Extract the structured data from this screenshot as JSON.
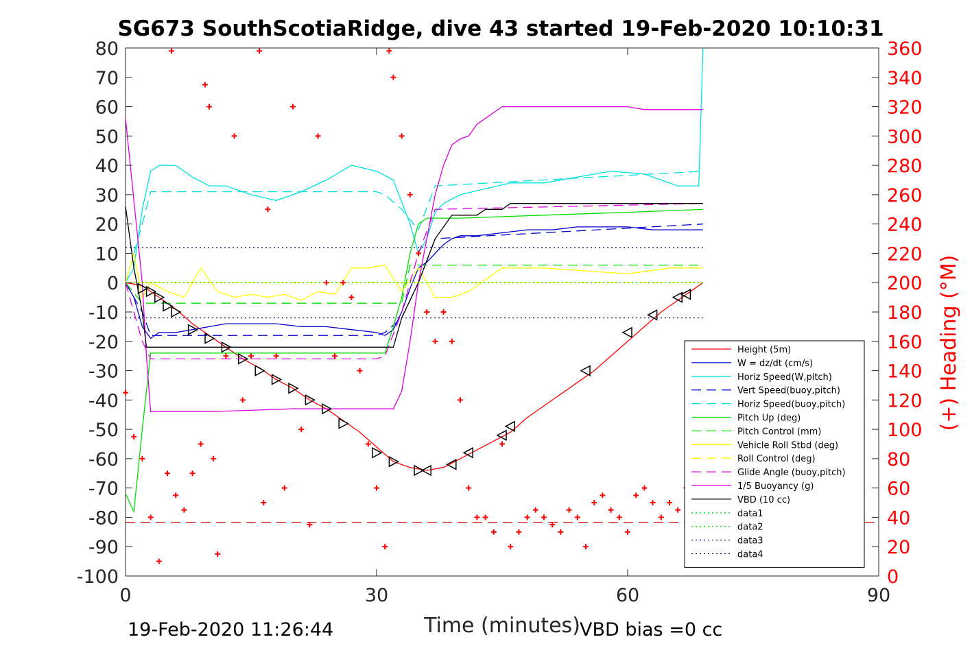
{
  "chart_data": {
    "type": "line",
    "title": "SG673 SouthScotiaRidge, dive 43 started 19-Feb-2020 10:10:31",
    "xlabel": "Time (minutes)",
    "ylabel": "",
    "y2label": "(+) Heading (°M)",
    "xlim": [
      0,
      90
    ],
    "ylim": [
      -100,
      80
    ],
    "y2lim": [
      0,
      360
    ],
    "xticks": [
      "0",
      "30",
      "60",
      "90"
    ],
    "yticks": [
      "80",
      "70",
      "60",
      "50",
      "40",
      "30",
      "20",
      "10",
      "0",
      "-10",
      "-20",
      "-30",
      "-40",
      "-50",
      "-60",
      "-70",
      "-80",
      "-90",
      "-100"
    ],
    "y2ticks": [
      "360",
      "340",
      "320",
      "300",
      "280",
      "260",
      "240",
      "220",
      "200",
      "180",
      "160",
      "140",
      "120",
      "100",
      "80",
      "60",
      "40",
      "20",
      "0"
    ],
    "grid": false,
    "legend_position": "bottom-right",
    "footer_left": "19-Feb-2020 11:26:44",
    "footer_right": "VBD bias =0 cc",
    "colors": {
      "height": "#ff0000",
      "w": "#0000cc",
      "horiz": "#00e0e0",
      "pitch": "#00dd00",
      "roll": "#ffff00",
      "glide": "#dd00dd",
      "buoy": "#dd00dd",
      "vbd": "#000000",
      "heading": "#ff0000",
      "marker": "#000000"
    },
    "series": [
      {
        "name": "Height (5m)",
        "style": "solid",
        "color": "#ff0000",
        "x": [
          0,
          2,
          4,
          6,
          8,
          10,
          12,
          14,
          16,
          18,
          20,
          22,
          24,
          26,
          28,
          30,
          32,
          34,
          36,
          38,
          40,
          42,
          44,
          46,
          48,
          50,
          52,
          54,
          56,
          58,
          60,
          62,
          64,
          66,
          68,
          69
        ],
        "y": [
          0,
          -1,
          -5,
          -9,
          -14,
          -18,
          -22,
          -26,
          -29,
          -33,
          -36,
          -40,
          -43,
          -47,
          -51,
          -56,
          -61,
          -63,
          -64,
          -63,
          -60,
          -57,
          -54,
          -51,
          -46,
          -42,
          -38,
          -34,
          -30,
          -25,
          -20,
          -15,
          -10,
          -6,
          -2,
          0
        ]
      },
      {
        "name": "W = dz/dt (cm/s)",
        "style": "solid",
        "color": "#0000cc",
        "x": [
          0,
          1,
          2,
          3,
          4,
          6,
          8,
          10,
          12,
          15,
          18,
          21,
          24,
          27,
          30,
          31,
          32,
          33,
          34,
          35,
          36,
          37,
          38,
          39,
          40,
          42,
          45,
          48,
          51,
          54,
          57,
          60,
          63,
          66,
          69
        ],
        "y": [
          0,
          -5,
          -15,
          -19,
          -17,
          -17,
          -16,
          -15,
          -14,
          -14,
          -14,
          -15,
          -15,
          -16,
          -17,
          -18,
          -16,
          -10,
          -2,
          5,
          7,
          10,
          13,
          15,
          16,
          16,
          17,
          18,
          18,
          19,
          19,
          19,
          18,
          18,
          18
        ]
      },
      {
        "name": "Horiz Speed(W,pitch)",
        "style": "solid",
        "color": "#00e0e0",
        "x": [
          0,
          1,
          2,
          3,
          4,
          6,
          8,
          10,
          12,
          15,
          18,
          21,
          24,
          27,
          30,
          32,
          34,
          35,
          36,
          37,
          38,
          40,
          43,
          46,
          50,
          54,
          58,
          62,
          66,
          68.5,
          69
        ],
        "y": [
          0,
          5,
          25,
          38,
          40,
          40,
          36,
          33,
          33,
          30,
          28,
          31,
          35,
          40,
          38,
          35,
          20,
          10,
          15,
          24,
          27,
          30,
          32,
          34,
          34,
          36,
          38,
          37,
          33,
          33,
          80
        ]
      },
      {
        "name": "Vert Speed(buoy,pitch)",
        "style": "dashed",
        "color": "#0000cc",
        "x": [
          0,
          2,
          3,
          30,
          31,
          33,
          35,
          37,
          69
        ],
        "y": [
          0,
          -10,
          -18,
          -18,
          -17,
          -12,
          0,
          15,
          20
        ]
      },
      {
        "name": "Horiz Speed(buoy,pitch)",
        "style": "dashed",
        "color": "#00e0e0",
        "x": [
          0,
          2,
          3,
          30,
          31,
          33,
          35,
          37,
          69
        ],
        "y": [
          0,
          20,
          31,
          31,
          30,
          25,
          18,
          33,
          38
        ]
      },
      {
        "name": "Pitch Up (deg)",
        "style": "solid",
        "color": "#00dd00",
        "x": [
          0,
          1,
          2,
          3,
          30,
          31,
          32,
          33,
          34,
          35,
          36,
          37,
          38,
          40,
          50,
          60,
          69
        ],
        "y": [
          -72,
          -78,
          -50,
          -24,
          -24,
          -24,
          -15,
          -5,
          10,
          20,
          22,
          22,
          22,
          22,
          23,
          24,
          25
        ]
      },
      {
        "name": "Pitch Control (mm)",
        "style": "dashed",
        "color": "#00dd00",
        "x": [
          0,
          2,
          3,
          32,
          33,
          34,
          69
        ],
        "y": [
          0,
          -7,
          -7,
          -7,
          -7,
          6,
          6
        ]
      },
      {
        "name": "Vehicle Roll Stbd (deg)",
        "style": "solid",
        "color": "#ffff00",
        "x": [
          0,
          1,
          2,
          3,
          5,
          7,
          9,
          11,
          13,
          15,
          17,
          19,
          21,
          23,
          25,
          27,
          29,
          31,
          33,
          35,
          37,
          39,
          41,
          45,
          50,
          55,
          60,
          65,
          69
        ],
        "y": [
          0,
          10,
          -5,
          0,
          -3,
          -5,
          5,
          -3,
          -5,
          -4,
          -5,
          -4,
          -6,
          -3,
          -4,
          5,
          5,
          6,
          -3,
          5,
          -5,
          -5,
          -3,
          5,
          5,
          4,
          3,
          5,
          5
        ]
      },
      {
        "name": "Roll Control (deg)",
        "style": "dashed",
        "color": "#ffff00",
        "x": [
          0,
          2,
          3,
          69
        ],
        "y": [
          0,
          0,
          0,
          0
        ]
      },
      {
        "name": "Glide Angle (buoy,pitch)",
        "style": "dashed",
        "color": "#dd00dd",
        "x": [
          0,
          2,
          3,
          30,
          31,
          33,
          35,
          37,
          69
        ],
        "y": [
          0,
          -20,
          -26,
          -26,
          -25,
          -10,
          10,
          25,
          27
        ]
      },
      {
        "name": "1/5 Buoyancy (g)",
        "style": "solid",
        "color": "#dd00dd",
        "x": [
          0,
          2,
          2.5,
          3,
          10,
          20,
          32,
          33,
          34,
          35,
          36,
          37,
          38,
          39,
          40,
          41,
          42,
          43,
          44,
          45,
          46,
          60,
          62,
          69
        ],
        "y": [
          56,
          0,
          -25,
          -44,
          -44,
          -43,
          -43,
          -37,
          -20,
          0,
          15,
          30,
          40,
          47,
          49,
          50,
          54,
          56,
          58,
          60,
          60,
          60,
          59,
          59
        ]
      },
      {
        "name": "VBD (10 cc)",
        "style": "solid",
        "color": "#000000",
        "x": [
          0,
          1,
          2,
          2.5,
          32,
          33,
          35,
          37,
          39,
          42,
          43,
          45,
          46,
          69
        ],
        "y": [
          26,
          5,
          -10,
          -22,
          -22,
          -12,
          0,
          15,
          23,
          23,
          25,
          25,
          27,
          27
        ]
      },
      {
        "name": "data1",
        "style": "dotted",
        "color": "#00dd00",
        "x": [
          0,
          69
        ],
        "y": [
          0,
          0
        ]
      },
      {
        "name": "data2",
        "style": "dotted",
        "color": "#00dd00",
        "x": [
          0,
          69
        ],
        "y": [
          0,
          0
        ]
      },
      {
        "name": "data3",
        "style": "dotted",
        "color": "#000080",
        "x": [
          0,
          69
        ],
        "y": [
          12,
          12
        ]
      },
      {
        "name": "data4",
        "style": "dotted",
        "color": "#000080",
        "x": [
          0,
          69
        ],
        "y": [
          -12,
          -12
        ]
      }
    ],
    "reference_lines": [
      {
        "y": -81.7,
        "style": "dashed",
        "color": "#cc0000"
      }
    ],
    "heading": {
      "axis": "right",
      "marker": "+",
      "color": "#ff0000",
      "x": [
        0,
        1,
        2,
        3,
        4,
        5,
        5.5,
        6,
        7,
        8,
        9,
        9.5,
        10,
        10.5,
        11,
        12,
        13,
        14,
        15,
        16,
        16.5,
        17,
        18,
        19,
        20,
        21,
        22,
        23,
        24,
        25,
        26,
        27,
        28,
        29,
        30,
        31,
        31.5,
        32,
        33,
        34,
        35,
        36,
        37,
        38,
        39,
        40,
        41,
        42,
        43,
        44,
        45,
        46,
        47,
        48,
        49,
        50,
        51,
        52,
        53,
        54,
        55,
        56,
        57,
        58,
        59,
        60,
        61,
        62,
        63,
        64,
        65,
        66,
        67
      ],
      "y": [
        125,
        95,
        80,
        40,
        10,
        70,
        358,
        55,
        45,
        70,
        90,
        335,
        320,
        80,
        15,
        150,
        300,
        120,
        150,
        358,
        50,
        250,
        150,
        60,
        320,
        100,
        35,
        300,
        200,
        150,
        200,
        190,
        140,
        90,
        60,
        20,
        358,
        340,
        300,
        260,
        220,
        180,
        160,
        180,
        160,
        120,
        60,
        40,
        40,
        30,
        90,
        20,
        30,
        40,
        45,
        40,
        35,
        30,
        45,
        40,
        20,
        50,
        55,
        45,
        40,
        30,
        55,
        60,
        50,
        40,
        50,
        45,
        60
      ]
    },
    "markers": {
      "note": "black triangle markers along Height track (descent right-pointing, ascent left-pointing)",
      "x": [
        2,
        3,
        4,
        5,
        6,
        8,
        10,
        12,
        14,
        16,
        18,
        20,
        22,
        24,
        26,
        30,
        32,
        35,
        36,
        39,
        41,
        45,
        46,
        55,
        60,
        63,
        66,
        67
      ],
      "y": [
        -2,
        -3,
        -5,
        -8,
        -10,
        -16,
        -19,
        -22,
        -26,
        -30,
        -33,
        -36,
        -40,
        -43,
        -48,
        -58,
        -61,
        -64,
        -64,
        -62,
        -58,
        -52,
        -49,
        -30,
        -17,
        -11,
        -5,
        -4
      ]
    }
  }
}
